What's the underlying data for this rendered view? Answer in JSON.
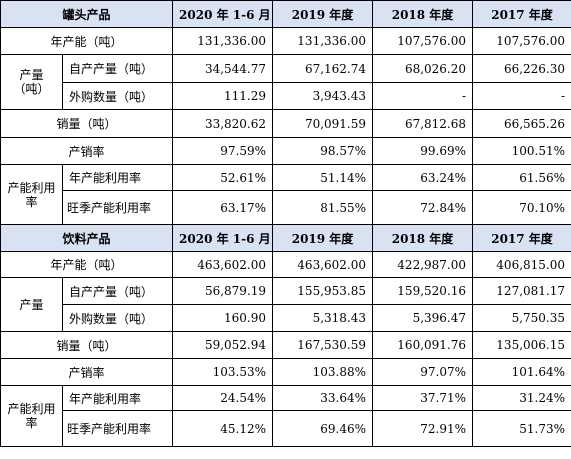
{
  "canned": {
    "header": [
      "罐头产品",
      "2020 年 1-6 月",
      "2019 年度",
      "2018 年度",
      "2017 年度"
    ],
    "capacity_label": "年产能（吨）",
    "capacity": [
      "131,336.00",
      "131,336.00",
      "107,576.00",
      "107,576.00"
    ],
    "output_label": "产量（吨）",
    "self_label": "自产产量（吨）",
    "self": [
      "34,544.77",
      "67,162.74",
      "68,026.20",
      "66,226.30"
    ],
    "outsourced_label": "外购数量（吨）",
    "outsourced": [
      "111.29",
      "3,943.43",
      "-",
      "-"
    ],
    "sales_label": "销量（吨）",
    "sales": [
      "33,820.62",
      "70,091.59",
      "67,812.68",
      "66,565.26"
    ],
    "ratio_label": "产销率",
    "ratio": [
      "97.59%",
      "98.57%",
      "99.69%",
      "100.51%"
    ],
    "util_label": "产能利用率",
    "annual_util_label": "年产能利用率",
    "annual_util": [
      "52.61%",
      "51.14%",
      "63.24%",
      "61.56%"
    ],
    "peak_util_label": "旺季产能利用率",
    "peak_util": [
      "63.17%",
      "81.55%",
      "72.84%",
      "70.10%"
    ]
  },
  "drinks": {
    "header": [
      "饮料产品",
      "2020 年 1-6 月",
      "2019 年度",
      "2018 年度",
      "2017 年度"
    ],
    "capacity_label": "年产能（吨）",
    "capacity": [
      "463,602.00",
      "463,602.00",
      "422,987.00",
      "406,815.00"
    ],
    "output_label": "产量",
    "self_label": "自产产量（吨）",
    "self": [
      "56,879.19",
      "155,953.85",
      "159,520.16",
      "127,081.17"
    ],
    "outsourced_label": "外购数量（吨）",
    "outsourced": [
      "160.90",
      "5,318.43",
      "5,396.47",
      "5,750.35"
    ],
    "sales_label": "销量（吨）",
    "sales": [
      "59,052.94",
      "167,530.59",
      "160,091.76",
      "135,006.15"
    ],
    "ratio_label": "产销率",
    "ratio": [
      "103.53%",
      "103.88%",
      "97.07%",
      "101.64%"
    ],
    "util_label": "产能利用率",
    "annual_util_label": "年产能利用率",
    "annual_util": [
      "24.54%",
      "33.64%",
      "37.71%",
      "31.24%"
    ],
    "peak_util_label": "旺季产能利用率",
    "peak_util": [
      "45.12%",
      "69.46%",
      "72.91%",
      "51.73%"
    ]
  }
}
